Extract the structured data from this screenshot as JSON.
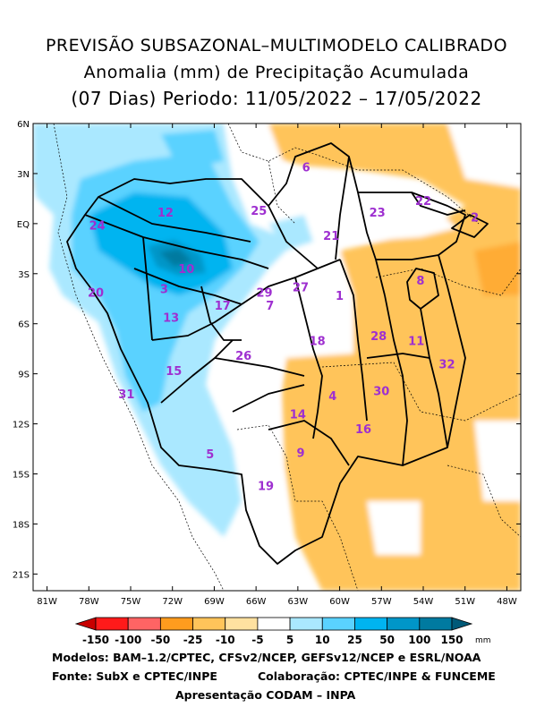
{
  "title": {
    "line1": "PREVISÃO SUBSAZONAL–MULTIMODELO CALIBRADO",
    "line2": "Anomalia (mm) de Precipitação Acumulada",
    "line3": "(07 Dias) Periodo: 11/05/2022 – 17/05/2022"
  },
  "map": {
    "lat_labels": [
      "6N",
      "3N",
      "EQ",
      "3S",
      "6S",
      "9S",
      "12S",
      "15S",
      "18S",
      "21S"
    ],
    "lon_labels": [
      "81W",
      "78W",
      "75W",
      "72W",
      "69W",
      "66W",
      "63W",
      "60W",
      "57W",
      "54W",
      "51W",
      "48W"
    ],
    "basin_labels": [
      {
        "id": "1",
        "lon": -60.0,
        "lat": -4.3
      },
      {
        "id": "2",
        "lon": -50.3,
        "lat": 0.4
      },
      {
        "id": "3",
        "lon": -72.6,
        "lat": -3.9
      },
      {
        "id": "4",
        "lon": -60.5,
        "lat": -10.3
      },
      {
        "id": "5",
        "lon": -69.3,
        "lat": -13.8
      },
      {
        "id": "6",
        "lon": -62.4,
        "lat": 3.4
      },
      {
        "id": "7",
        "lon": -65.0,
        "lat": -4.9
      },
      {
        "id": "8",
        "lon": -54.2,
        "lat": -3.4
      },
      {
        "id": "9",
        "lon": -62.8,
        "lat": -13.7
      },
      {
        "id": "10",
        "lon": -71.0,
        "lat": -2.7
      },
      {
        "id": "11",
        "lon": -54.5,
        "lat": -7.0
      },
      {
        "id": "12",
        "lon": -72.5,
        "lat": 0.7
      },
      {
        "id": "13",
        "lon": -72.1,
        "lat": -5.6
      },
      {
        "id": "14",
        "lon": -63.0,
        "lat": -11.4
      },
      {
        "id": "15",
        "lon": -71.9,
        "lat": -8.8
      },
      {
        "id": "16",
        "lon": -58.3,
        "lat": -12.3
      },
      {
        "id": "17",
        "lon": -68.4,
        "lat": -4.9
      },
      {
        "id": "18",
        "lon": -61.6,
        "lat": -7.0
      },
      {
        "id": "19",
        "lon": -65.3,
        "lat": -15.7
      },
      {
        "id": "20",
        "lon": -77.5,
        "lat": -4.1
      },
      {
        "id": "21",
        "lon": -60.6,
        "lat": -0.7
      },
      {
        "id": "22",
        "lon": -54.0,
        "lat": 1.4
      },
      {
        "id": "23",
        "lon": -57.3,
        "lat": 0.7
      },
      {
        "id": "24",
        "lon": -77.4,
        "lat": -0.1
      },
      {
        "id": "25",
        "lon": -65.8,
        "lat": 0.8
      },
      {
        "id": "26",
        "lon": -66.9,
        "lat": -7.9
      },
      {
        "id": "27",
        "lon": -62.8,
        "lat": -3.8
      },
      {
        "id": "28",
        "lon": -57.2,
        "lat": -6.7
      },
      {
        "id": "29",
        "lon": -65.4,
        "lat": -4.1
      },
      {
        "id": "30",
        "lon": -57.0,
        "lat": -10.0
      },
      {
        "id": "31",
        "lon": -75.3,
        "lat": -10.2
      },
      {
        "id": "32",
        "lon": -52.3,
        "lat": -8.4
      }
    ],
    "colors": {
      "basin_label": "#9e2fd0",
      "border": "#000000"
    }
  },
  "colorbar": {
    "labels": [
      "-150",
      "-100",
      "-50",
      "-25",
      "-10",
      "-5",
      "5",
      "10",
      "25",
      "50",
      "100",
      "150"
    ],
    "unit": "mm",
    "colors": [
      "#c80000",
      "#ff1a1a",
      "#ff6464",
      "#ff9c1e",
      "#ffc45a",
      "#ffe1a0",
      "#ffffff",
      "#aae8ff",
      "#5ad2ff",
      "#00b4f0",
      "#0096c8",
      "#007aa0",
      "#005a78"
    ]
  },
  "footer": {
    "models": "Modelos: BAM–1.2/CPTEC, CFSv2/NCEP, GEFSv12/NCEP e ESRL/NOAA",
    "source": "Fonte: SubX e CPTEC/INPE",
    "collab": "Colaboração: CPTEC/INPE & FUNCEME",
    "presentation": "Apresentação CODAM – INPA"
  }
}
